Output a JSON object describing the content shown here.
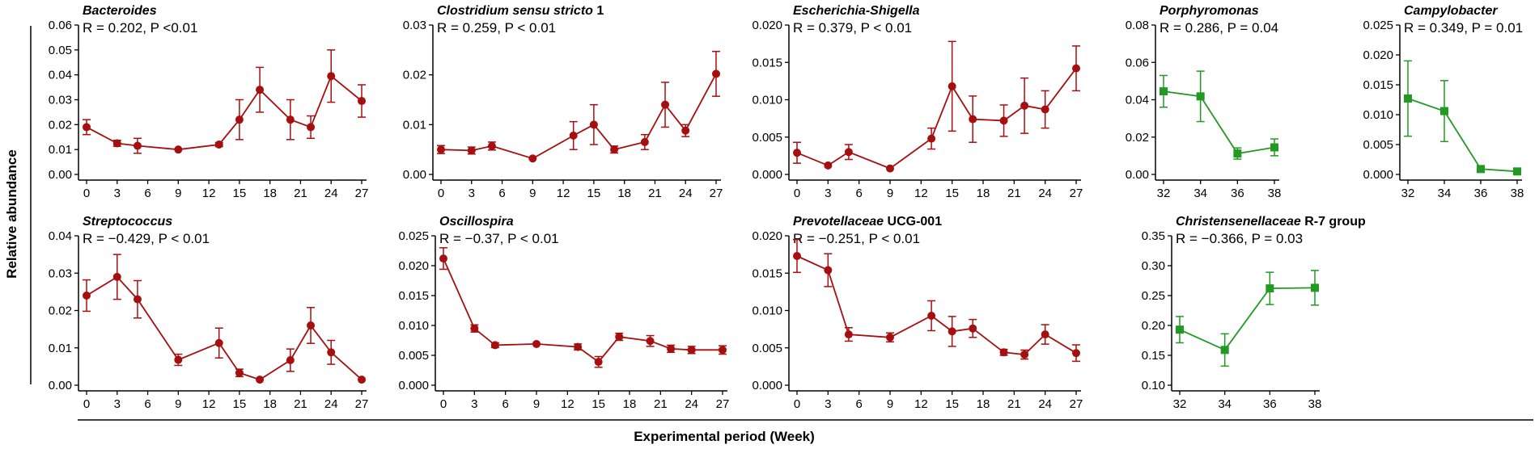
{
  "figure": {
    "ylabel": "Relative abundance",
    "xlabel": "Experimental period (Week)",
    "colors": {
      "red": "#a50f0f",
      "green": "#229922",
      "axis": "#000000"
    }
  },
  "chart_data": [
    {
      "type": "line",
      "title": "Bacteroides",
      "title_parts": [
        {
          "text": "Bacteroides",
          "italic": true
        }
      ],
      "stat": "R = 0.202, P <0.01",
      "color": "red",
      "marker": "circle",
      "x": [
        0,
        3,
        5,
        9,
        13,
        15,
        17,
        20,
        22,
        24,
        27
      ],
      "y": [
        0.019,
        0.0125,
        0.0115,
        0.01,
        0.012,
        0.022,
        0.034,
        0.022,
        0.019,
        0.0395,
        0.0295
      ],
      "err": [
        0.003,
        0.0012,
        0.003,
        0,
        0.0008,
        0.008,
        0.009,
        0.008,
        0.0045,
        0.0105,
        0.0065
      ],
      "xlim": [
        0,
        27
      ],
      "ylim": [
        0,
        0.06
      ],
      "xticks": [
        "0",
        "3",
        "6",
        "9",
        "12",
        "15",
        "18",
        "21",
        "24",
        "27"
      ],
      "yticks": [
        "0.00",
        "0.01",
        "0.02",
        "0.03",
        "0.04",
        "0.05",
        "0.06"
      ]
    },
    {
      "type": "line",
      "title": "Clostridium sensu stricto 1",
      "title_parts": [
        {
          "text": "Clostridium sensu stricto",
          "italic": true
        },
        {
          "text": " 1",
          "italic": false
        }
      ],
      "stat": "R = 0.259, P < 0.01",
      "color": "red",
      "marker": "circle",
      "x": [
        0,
        3,
        5,
        9,
        13,
        15,
        17,
        20,
        22,
        24,
        27
      ],
      "y": [
        0.005,
        0.0048,
        0.0057,
        0.0032,
        0.0078,
        0.01,
        0.005,
        0.0065,
        0.014,
        0.0088,
        0.0202
      ],
      "err": [
        0.0008,
        0.0007,
        0.0008,
        0,
        0.0028,
        0.004,
        0.0007,
        0.0015,
        0.0045,
        0.0012,
        0.0045
      ],
      "xlim": [
        0,
        27
      ],
      "ylim": [
        0,
        0.03
      ],
      "xticks": [
        "0",
        "3",
        "6",
        "9",
        "12",
        "15",
        "18",
        "21",
        "24",
        "27"
      ],
      "yticks": [
        "0.00",
        "0.01",
        "0.02",
        "0.03"
      ]
    },
    {
      "type": "line",
      "title": "Escherichia-Shigella",
      "title_parts": [
        {
          "text": "Escherichia-Shigella",
          "italic": true
        }
      ],
      "stat": "R = 0.379, P < 0.01",
      "color": "red",
      "marker": "circle",
      "x": [
        0,
        3,
        5,
        9,
        13,
        15,
        17,
        20,
        22,
        24,
        27
      ],
      "y": [
        0.0029,
        0.0012,
        0.003,
        0.0008,
        0.0048,
        0.0118,
        0.0074,
        0.0072,
        0.0092,
        0.0087,
        0.0142
      ],
      "err": [
        0.0014,
        0,
        0.001,
        0,
        0.0014,
        0.006,
        0.0031,
        0.0021,
        0.0037,
        0.0025,
        0.003
      ],
      "xlim": [
        0,
        27
      ],
      "ylim": [
        0,
        0.02
      ],
      "xticks": [
        "0",
        "3",
        "6",
        "9",
        "12",
        "15",
        "18",
        "21",
        "24",
        "27"
      ],
      "yticks": [
        "0.000",
        "0.005",
        "0.010",
        "0.015",
        "0.020"
      ]
    },
    {
      "type": "line",
      "title": "Porphyromonas",
      "title_parts": [
        {
          "text": "Porphyromonas",
          "italic": true
        }
      ],
      "stat": "R = 0.286, P = 0.04",
      "color": "green",
      "marker": "square",
      "x": [
        32,
        34,
        36,
        38
      ],
      "y": [
        0.0445,
        0.0418,
        0.0112,
        0.0145
      ],
      "err": [
        0.0085,
        0.0135,
        0.003,
        0.0045
      ],
      "xlim": [
        32,
        38
      ],
      "ylim": [
        0,
        0.08
      ],
      "xticks": [
        "32",
        "34",
        "36",
        "38"
      ],
      "yticks": [
        "0.00",
        "0.02",
        "0.04",
        "0.06",
        "0.08"
      ]
    },
    {
      "type": "line",
      "title": "Campylobacter",
      "title_parts": [
        {
          "text": "Campylobacter",
          "italic": true
        }
      ],
      "stat": "R = 0.349, P = 0.01",
      "color": "green",
      "marker": "square",
      "x": [
        32,
        34,
        36,
        38
      ],
      "y": [
        0.0127,
        0.0106,
        0.0009,
        0.0005
      ],
      "err": [
        0.0063,
        0.0051,
        0,
        0
      ],
      "xlim": [
        32,
        38
      ],
      "ylim": [
        0,
        0.025
      ],
      "xticks": [
        "32",
        "34",
        "36",
        "38"
      ],
      "yticks": [
        "0.000",
        "0.005",
        "0.010",
        "0.015",
        "0.020",
        "0.025"
      ]
    },
    {
      "type": "line",
      "title": "Streptococcus",
      "title_parts": [
        {
          "text": "Streptococcus",
          "italic": true
        }
      ],
      "stat": "R = −0.429, P < 0.01",
      "color": "red",
      "marker": "circle",
      "x": [
        0,
        3,
        5,
        9,
        13,
        15,
        17,
        20,
        22,
        24,
        27
      ],
      "y": [
        0.024,
        0.029,
        0.023,
        0.0068,
        0.0113,
        0.0033,
        0.0015,
        0.0067,
        0.016,
        0.0088,
        0.0015
      ],
      "err": [
        0.0042,
        0.006,
        0.005,
        0.0015,
        0.004,
        0.001,
        0,
        0.003,
        0.0048,
        0.0032,
        0
      ],
      "xlim": [
        0,
        27
      ],
      "ylim": [
        0,
        0.04
      ],
      "xticks": [
        "0",
        "3",
        "6",
        "9",
        "12",
        "15",
        "18",
        "21",
        "24",
        "27"
      ],
      "yticks": [
        "0.00",
        "0.01",
        "0.02",
        "0.03",
        "0.04"
      ]
    },
    {
      "type": "line",
      "title": "Oscillospira",
      "title_parts": [
        {
          "text": "Oscillospira",
          "italic": true
        }
      ],
      "stat": "R = −0.37, P < 0.01",
      "color": "red",
      "marker": "circle",
      "x": [
        0,
        3,
        5,
        9,
        13,
        15,
        17,
        20,
        22,
        24,
        27
      ],
      "y": [
        0.0212,
        0.0095,
        0.0067,
        0.0069,
        0.0064,
        0.0039,
        0.0081,
        0.0074,
        0.0061,
        0.0059,
        0.0059
      ],
      "err": [
        0.0018,
        0.0006,
        0.0004,
        0,
        0.0005,
        0.0009,
        0.0006,
        0.0009,
        0.0006,
        0.0006,
        0.0007
      ],
      "xlim": [
        0,
        27
      ],
      "ylim": [
        0,
        0.025
      ],
      "xticks": [
        "0",
        "3",
        "6",
        "9",
        "12",
        "15",
        "18",
        "21",
        "24",
        "27"
      ],
      "yticks": [
        "0.000",
        "0.005",
        "0.010",
        "0.015",
        "0.020",
        "0.025"
      ]
    },
    {
      "type": "line",
      "title": "Prevotellaceae UCG-001",
      "title_parts": [
        {
          "text": "Prevotellaceae",
          "italic": true
        },
        {
          "text": " UCG-001",
          "italic": false
        }
      ],
      "stat": "R = −0.251, P < 0.01",
      "color": "red",
      "marker": "circle",
      "x": [
        0,
        3,
        5,
        9,
        13,
        15,
        17,
        20,
        22,
        24,
        27
      ],
      "y": [
        0.0173,
        0.0154,
        0.0068,
        0.0064,
        0.0093,
        0.0072,
        0.0076,
        0.0044,
        0.0041,
        0.0068,
        0.0043
      ],
      "err": [
        0.0022,
        0.0022,
        0.0009,
        0.0006,
        0.002,
        0.002,
        0.0012,
        0.0004,
        0.0006,
        0.0013,
        0.0011
      ],
      "xlim": [
        0,
        27
      ],
      "ylim": [
        0,
        0.02
      ],
      "xticks": [
        "0",
        "3",
        "6",
        "9",
        "12",
        "15",
        "18",
        "21",
        "24",
        "27"
      ],
      "yticks": [
        "0.000",
        "0.005",
        "0.010",
        "0.015",
        "0.020"
      ]
    },
    {
      "type": "line",
      "title": "Christensenellaceae R-7 group",
      "title_parts": [
        {
          "text": "Christensenellaceae",
          "italic": true
        },
        {
          "text": " R-7 group",
          "italic": false
        }
      ],
      "stat": "R = −0.366, P = 0.03",
      "color": "green",
      "marker": "square",
      "x": [
        32,
        34,
        36,
        38
      ],
      "y": [
        0.193,
        0.159,
        0.262,
        0.263
      ],
      "err": [
        0.022,
        0.027,
        0.027,
        0.029
      ],
      "xlim": [
        32,
        38
      ],
      "ylim": [
        0.1,
        0.35
      ],
      "xticks": [
        "32",
        "34",
        "36",
        "38"
      ],
      "yticks": [
        "0.10",
        "0.15",
        "0.20",
        "0.25",
        "0.30",
        "0.35"
      ]
    }
  ]
}
